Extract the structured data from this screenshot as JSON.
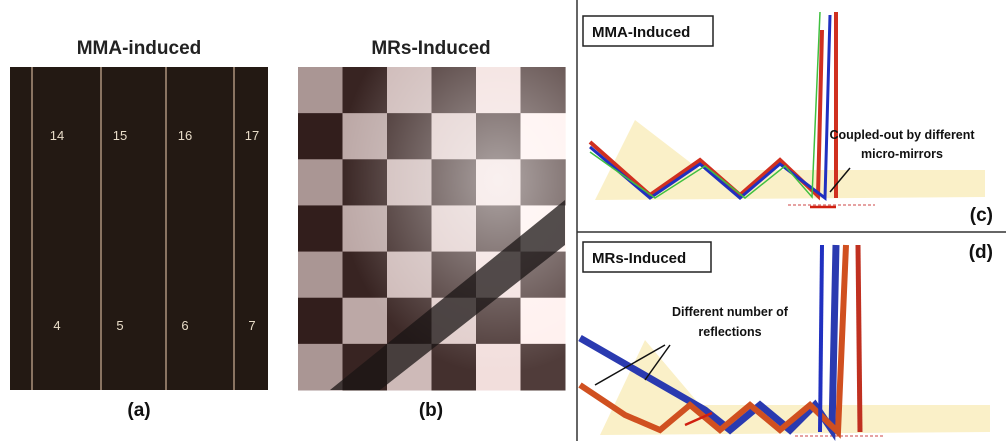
{
  "panels": [
    {
      "title": "MMA-induced",
      "label": "(a)",
      "numbers": [
        "14",
        "15",
        "16",
        "17",
        "4",
        "5",
        "6",
        "7"
      ]
    },
    {
      "title": "MRs-Induced",
      "label": "(b)"
    },
    {
      "title": "MMA-Induced",
      "label": "(c)",
      "annotation": [
        "Coupled-out by different",
        "micro-mirrors"
      ]
    },
    {
      "title": "MRs-Induced",
      "label": "(d)",
      "annotation": [
        "Different number of",
        "reflections"
      ]
    }
  ]
}
